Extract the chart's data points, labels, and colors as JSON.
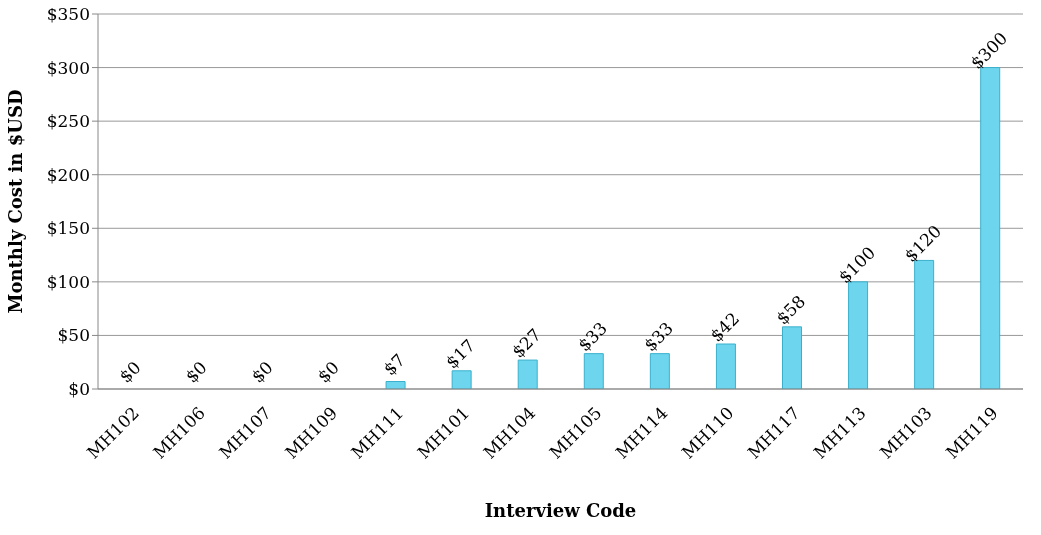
{
  "chart_data": {
    "type": "bar",
    "categories": [
      "MH102",
      "MH106",
      "MH107",
      "MH109",
      "MH111",
      "MH101",
      "MH104",
      "MH105",
      "MH114",
      "MH110",
      "MH117",
      "MH113",
      "MH103",
      "MH119"
    ],
    "values": [
      0,
      0,
      0,
      0,
      7,
      17,
      27,
      33,
      33,
      42,
      58,
      100,
      120,
      300
    ],
    "value_labels": [
      "$0",
      "$0",
      "$0",
      "$0",
      "$7",
      "$17",
      "$27",
      "$33",
      "$33",
      "$42",
      "$58",
      "$100",
      "$120",
      "$300"
    ],
    "color": "#6dd6ee",
    "xlabel": "Interview Code",
    "ylabel": "Monthly Cost in $USD",
    "ylim": [
      0,
      350
    ],
    "yticks": [
      {
        "value": 0,
        "label": "$0"
      },
      {
        "value": 50,
        "label": "$50"
      },
      {
        "value": 100,
        "label": "$100"
      },
      {
        "value": 150,
        "label": "$150"
      },
      {
        "value": 200,
        "label": "$200"
      },
      {
        "value": 250,
        "label": "$250"
      },
      {
        "value": 300,
        "label": "$300"
      },
      {
        "value": 350,
        "label": "$350"
      }
    ],
    "grid": "y",
    "legend": false
  }
}
